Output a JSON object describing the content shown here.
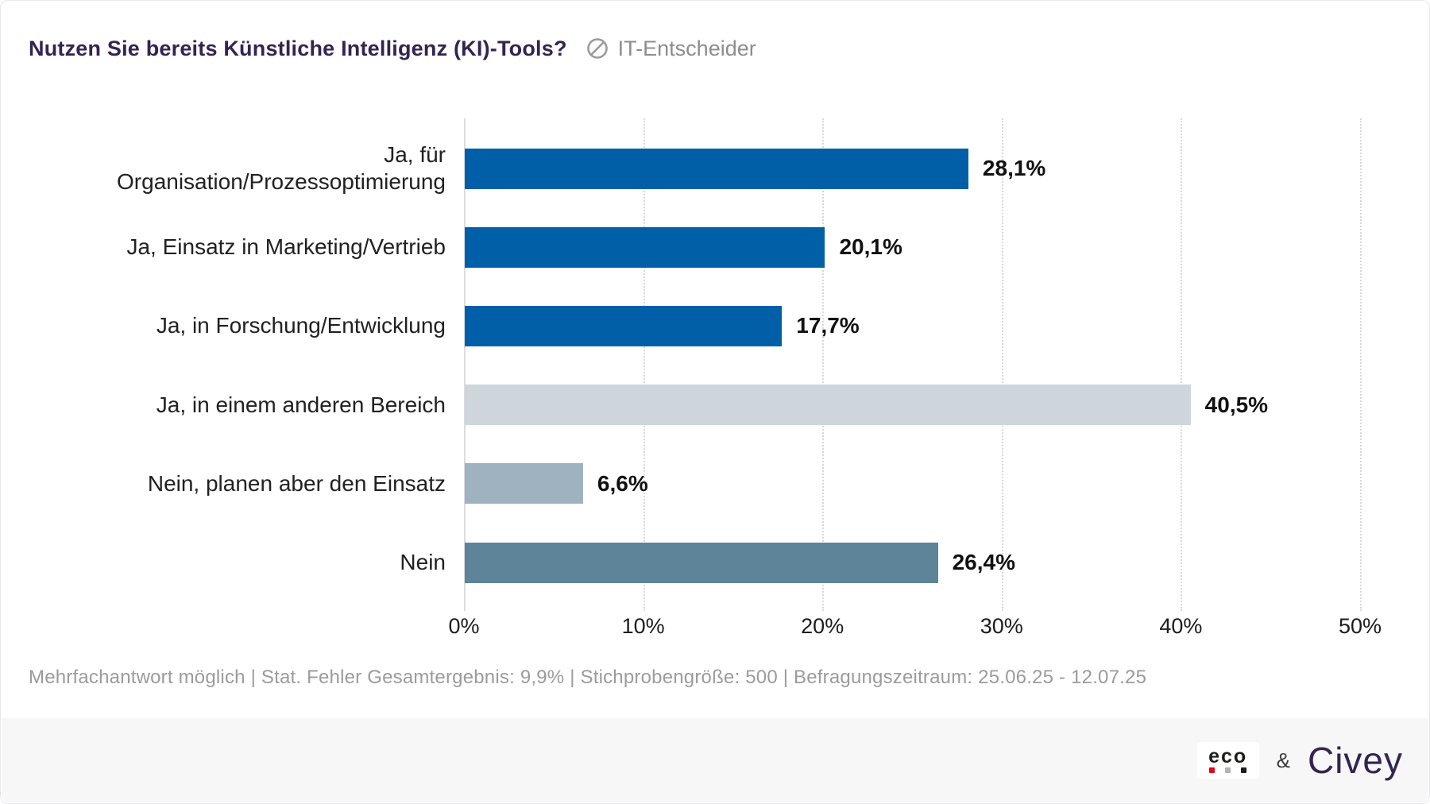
{
  "header": {
    "title": "Nutzen Sie bereits Künstliche Intelligenz (KI)-Tools?",
    "audience_label": "IT-Entscheider"
  },
  "chart_data": {
    "type": "bar",
    "orientation": "horizontal",
    "title": "Nutzen Sie bereits Künstliche Intelligenz (KI)-Tools?",
    "audience": "IT-Entscheider",
    "categories": [
      "Ja, für Organisation/Prozessoptimierung",
      "Ja, Einsatz in Marketing/Vertrieb",
      "Ja, in Forschung/Entwicklung",
      "Ja, in einem anderen Bereich",
      "Nein, planen aber den Einsatz",
      "Nein"
    ],
    "values": [
      28.1,
      20.1,
      17.7,
      40.5,
      6.6,
      26.4
    ],
    "value_labels": [
      "28,1%",
      "20,1%",
      "17,7%",
      "40,5%",
      "6,6%",
      "26,4%"
    ],
    "bar_colors": [
      "#005fa7",
      "#005fa7",
      "#005fa7",
      "#ced5dc",
      "#9fb2c0",
      "#5e8499"
    ],
    "xlim": [
      0,
      50
    ],
    "x_ticks": [
      "0%",
      "10%",
      "20%",
      "30%",
      "40%",
      "50%"
    ],
    "grid": "vertical-dotted",
    "legend": "none"
  },
  "footer": {
    "note": "Mehrfachantwort möglich | Stat. Fehler Gesamtergebnis: 9,9% | Stichprobengröße: 500 | Befragungszeitraum: 25.06.25 - 12.07.25"
  },
  "branding": {
    "eco_label": "eco",
    "eco_dot_colors": [
      "#e2001a",
      "#b4b4b4",
      "#1d1d1b"
    ],
    "ampersand": "&",
    "civey_label": "Civey"
  }
}
